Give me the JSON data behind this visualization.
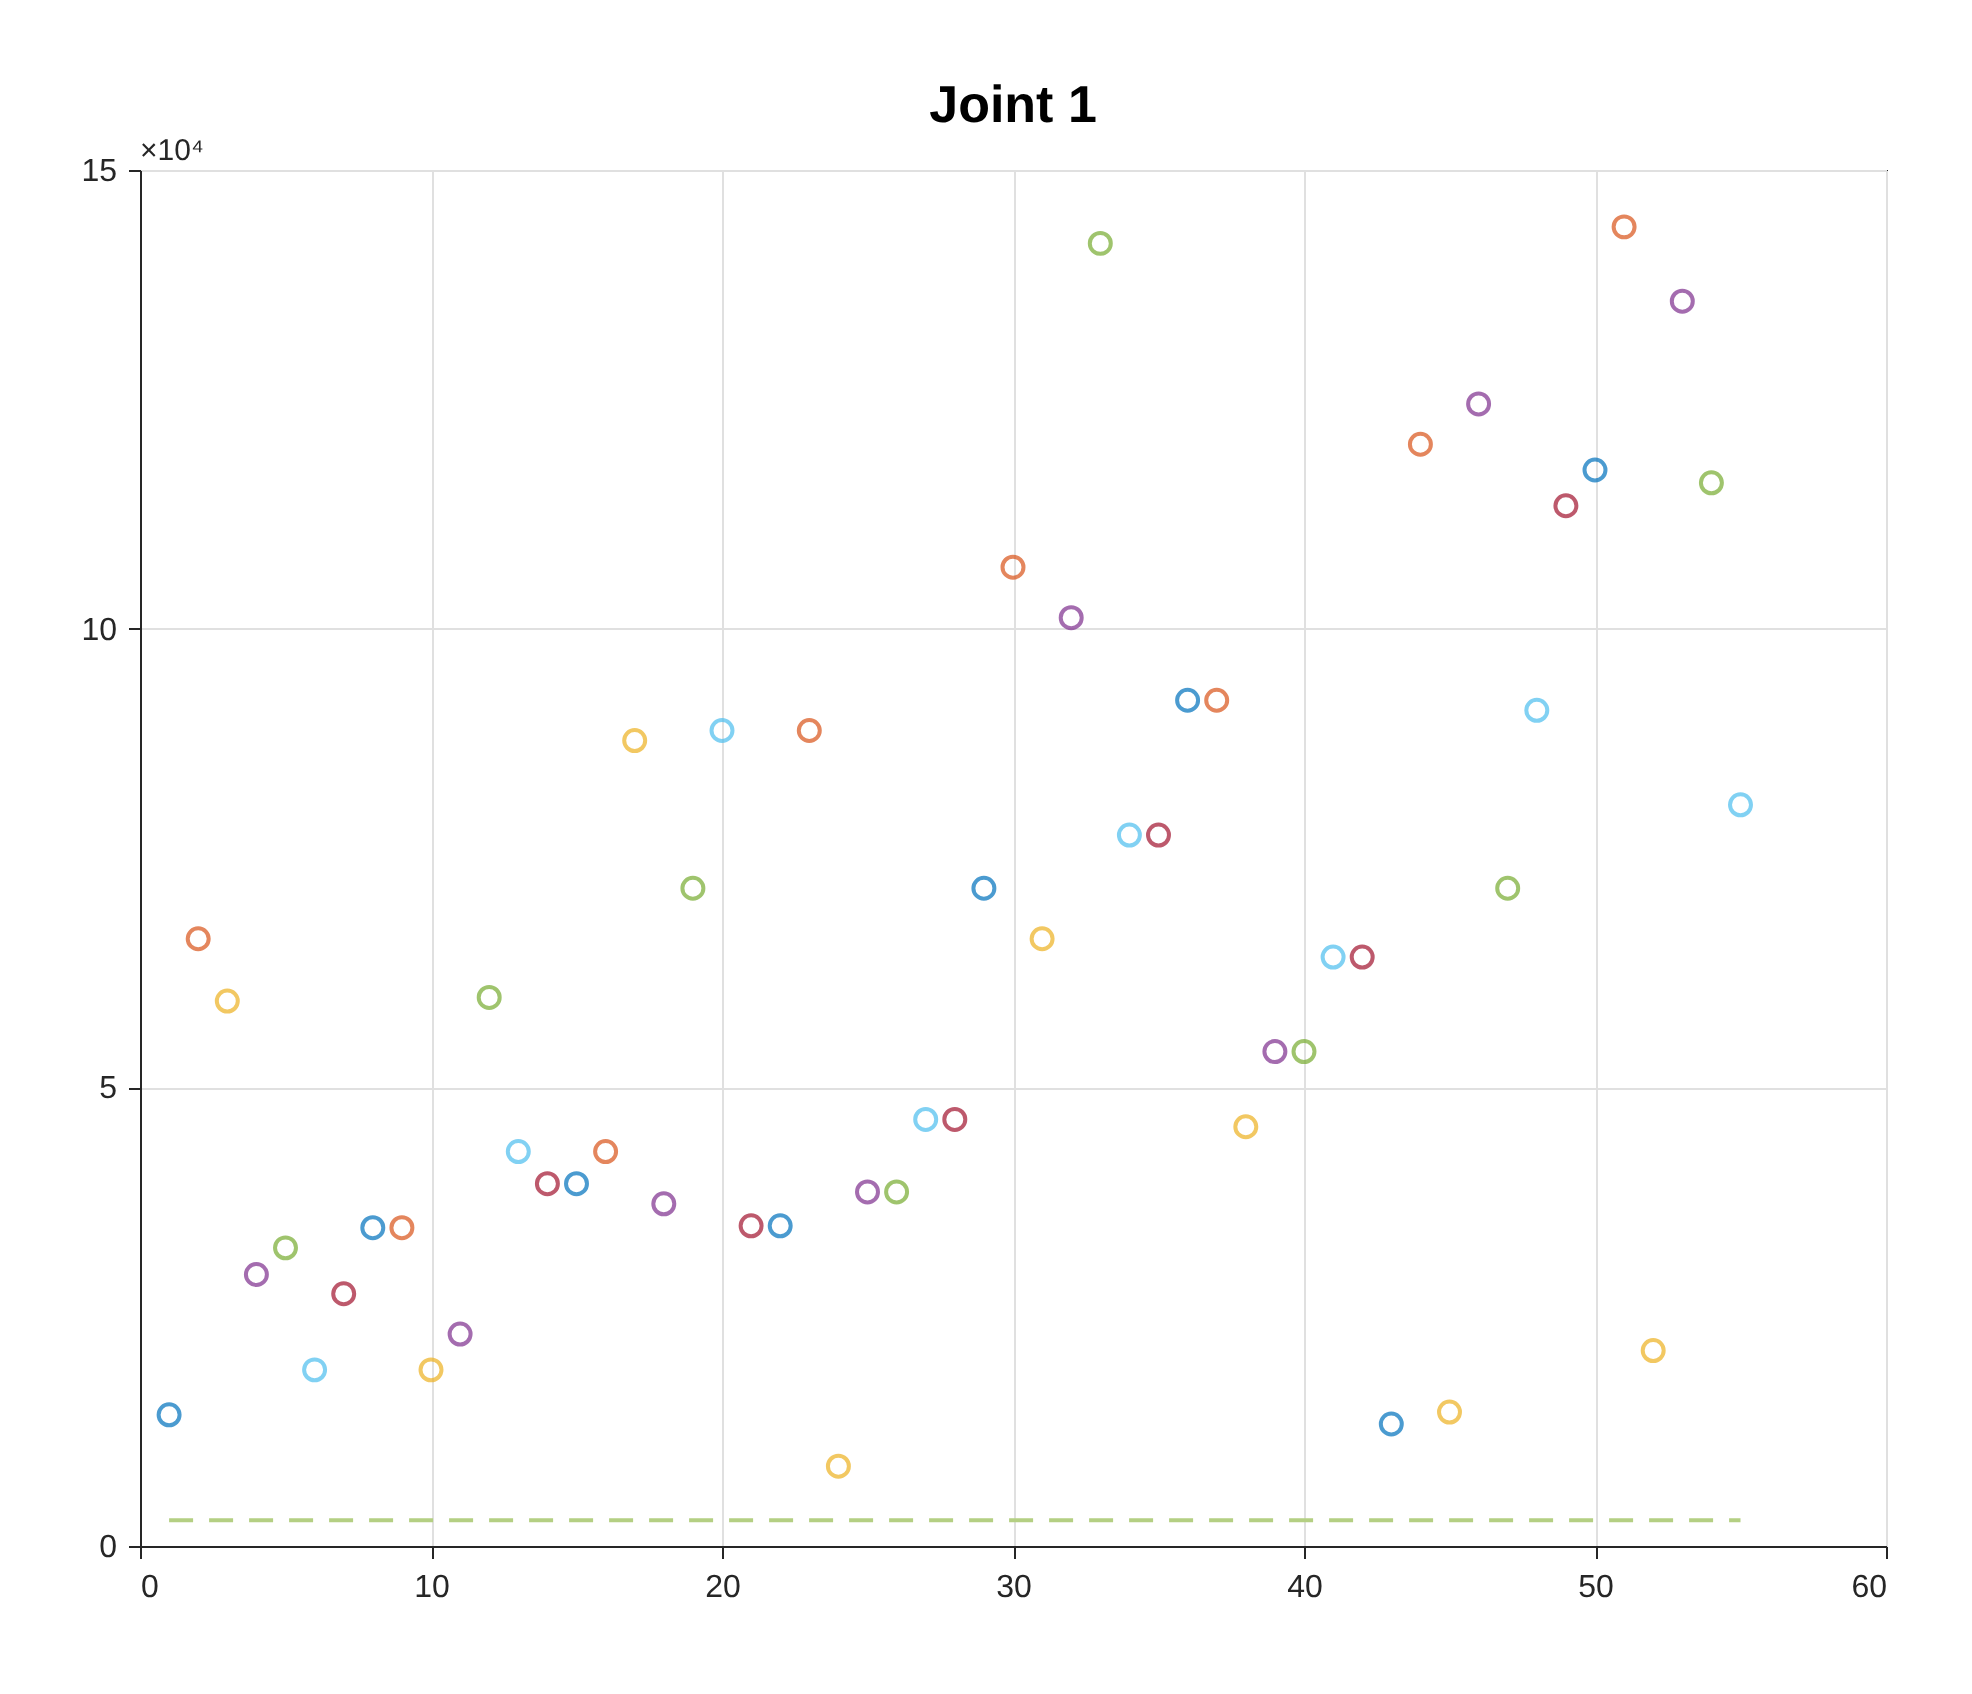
{
  "chart_data": {
    "type": "scatter",
    "title": "Joint 1",
    "annotations": [
      "×10⁴"
    ],
    "xlim": [
      0,
      60
    ],
    "xticks": [
      0,
      10,
      20,
      30,
      40,
      50,
      60
    ],
    "ylim": [
      0,
      15
    ],
    "yticks": [
      0,
      5,
      10,
      15
    ],
    "grid": true,
    "series": [
      {
        "type": "scatter",
        "marker": "circle",
        "x": [
          1,
          2,
          3,
          4,
          5,
          6,
          7,
          8,
          9,
          10,
          11,
          12,
          13,
          14,
          15,
          16,
          17,
          18,
          19,
          20,
          21,
          22,
          23,
          24,
          25,
          26,
          27,
          28,
          29,
          30,
          31,
          32,
          33,
          34,
          35,
          36,
          37,
          38,
          39,
          40,
          41,
          42,
          43,
          44,
          45,
          46,
          47,
          48,
          49,
          50,
          51,
          52,
          53,
          54,
          55
        ],
        "values": [
          1.43,
          6.62,
          5.94,
          2.96,
          3.25,
          1.92,
          2.75,
          3.47,
          3.47,
          1.92,
          2.31,
          5.98,
          4.3,
          3.95,
          3.95,
          4.3,
          8.78,
          3.73,
          7.17,
          8.89,
          3.49,
          3.49,
          8.89,
          0.87,
          3.86,
          3.86,
          4.65,
          4.65,
          7.17,
          10.67,
          6.62,
          10.12,
          14.2,
          7.75,
          7.75,
          9.22,
          9.22,
          4.57,
          5.39,
          5.39,
          6.42,
          6.42,
          1.33,
          12.01,
          1.46,
          12.45,
          7.17,
          9.11,
          11.34,
          11.73,
          14.38,
          2.13,
          13.57,
          11.59,
          8.08
        ],
        "colors": [
          "#0072bd",
          "#d95319",
          "#edb120",
          "#7e2f8e",
          "#77ac30",
          "#4dbeee",
          "#a2142f",
          "#0072bd",
          "#d95319",
          "#edb120",
          "#7e2f8e",
          "#77ac30",
          "#4dbeee",
          "#a2142f",
          "#0072bd",
          "#d95319",
          "#edb120",
          "#7e2f8e",
          "#77ac30",
          "#4dbeee",
          "#a2142f",
          "#0072bd",
          "#d95319",
          "#edb120",
          "#7e2f8e",
          "#77ac30",
          "#4dbeee",
          "#a2142f",
          "#0072bd",
          "#d95319",
          "#edb120",
          "#7e2f8e",
          "#77ac30",
          "#4dbeee",
          "#a2142f",
          "#0072bd",
          "#d95319",
          "#edb120",
          "#7e2f8e",
          "#77ac30",
          "#4dbeee",
          "#a2142f",
          "#0072bd",
          "#d95319",
          "#edb120",
          "#7e2f8e",
          "#77ac30",
          "#4dbeee",
          "#a2142f",
          "#0072bd",
          "#d95319",
          "#edb120",
          "#7e2f8e",
          "#77ac30",
          "#4dbeee"
        ]
      },
      {
        "type": "line",
        "x": [
          1,
          55
        ],
        "values": [
          0.28,
          0.28
        ],
        "color": "#b4cf83",
        "line_style": "dashed"
      }
    ]
  }
}
